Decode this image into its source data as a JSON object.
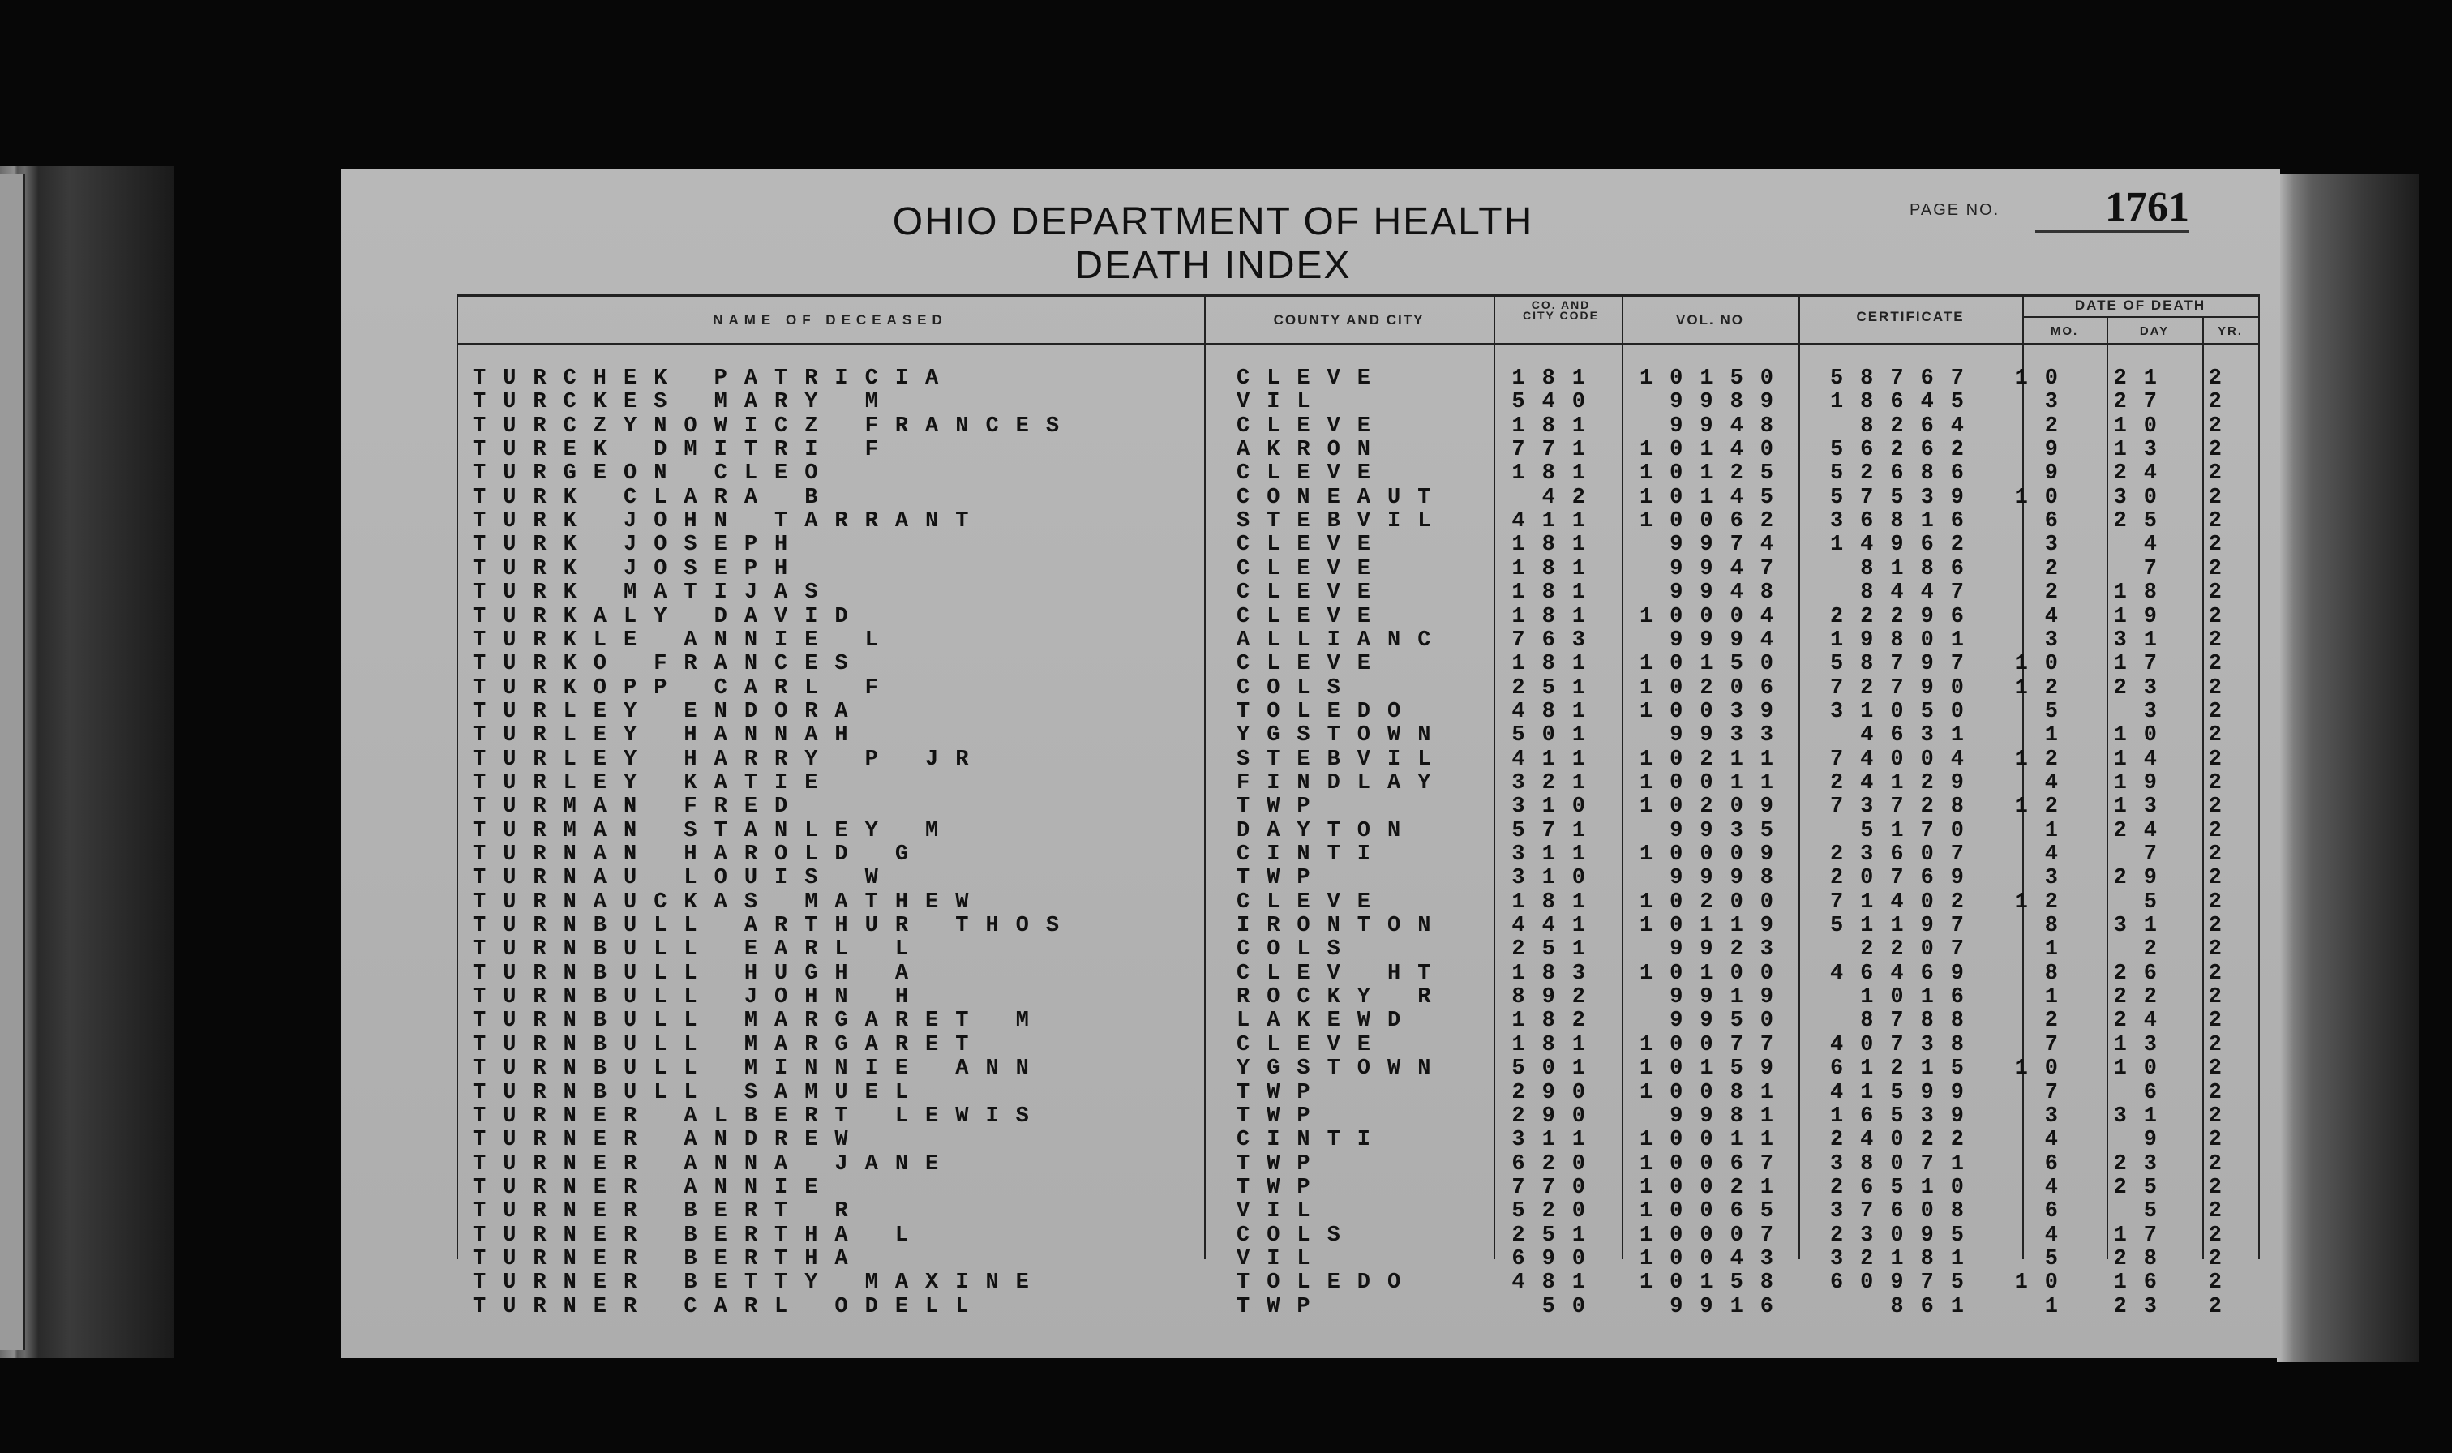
{
  "header": {
    "title_line1": "OHIO DEPARTMENT OF HEALTH",
    "title_line2": "DEATH INDEX",
    "page_no_label": "PAGE NO.",
    "page_no": "1761"
  },
  "columns": {
    "name": "NAME OF DECEASED",
    "county": "COUNTY AND CITY",
    "code": "CO. AND CITY CODE",
    "vol": "VOL. NO",
    "certificate": "CERTIFICATE",
    "date_group": "DATE OF DEATH",
    "mo": "MO.",
    "day": "DAY",
    "yr": "YR."
  },
  "rows": [
    [
      "TURCHEK PATRICIA",
      "CLEVE",
      "181",
      "10150",
      "58767",
      "10",
      "21",
      "2"
    ],
    [
      "TURCKES MARY M",
      "VIL",
      "540",
      "9989",
      "18645",
      "3",
      "27",
      "2"
    ],
    [
      "TURCZYNOWICZ FRANCES",
      "CLEVE",
      "181",
      "9948",
      "8264",
      "2",
      "10",
      "2"
    ],
    [
      "TUREK DMITRI F",
      "AKRON",
      "771",
      "10140",
      "56262",
      "9",
      "13",
      "2"
    ],
    [
      "TURGEON CLEO",
      "CLEVE",
      "181",
      "10125",
      "52686",
      "9",
      "24",
      "2"
    ],
    [
      "TURK CLARA B",
      "CONEAUT",
      "42",
      "10145",
      "57539",
      "10",
      "30",
      "2"
    ],
    [
      "TURK JOHN TARRANT",
      "STEBVIL",
      "411",
      "10062",
      "36816",
      "6",
      "25",
      "2"
    ],
    [
      "TURK JOSEPH",
      "CLEVE",
      "181",
      "9974",
      "14962",
      "3",
      "4",
      "2"
    ],
    [
      "TURK JOSEPH",
      "CLEVE",
      "181",
      "9947",
      "8186",
      "2",
      "7",
      "2"
    ],
    [
      "TURK MATIJAS",
      "CLEVE",
      "181",
      "9948",
      "8447",
      "2",
      "18",
      "2"
    ],
    [
      "TURKALY DAVID",
      "CLEVE",
      "181",
      "10004",
      "22296",
      "4",
      "19",
      "2"
    ],
    [
      "TURKLE ANNIE L",
      "ALLIANC",
      "763",
      "9994",
      "19801",
      "3",
      "31",
      "2"
    ],
    [
      "TURKO FRANCES",
      "CLEVE",
      "181",
      "10150",
      "58797",
      "10",
      "17",
      "2"
    ],
    [
      "TURKOPP CARL F",
      "COLS",
      "251",
      "10206",
      "72790",
      "12",
      "23",
      "2"
    ],
    [
      "TURLEY ENDORA",
      "TOLEDO",
      "481",
      "10039",
      "31050",
      "5",
      "3",
      "2"
    ],
    [
      "TURLEY HANNAH",
      "YGSTOWN",
      "501",
      "9933",
      "4631",
      "1",
      "10",
      "2"
    ],
    [
      "TURLEY HARRY P JR",
      "STEBVIL",
      "411",
      "10211",
      "74004",
      "12",
      "14",
      "2"
    ],
    [
      "TURLEY KATIE",
      "FINDLAY",
      "321",
      "10011",
      "24129",
      "4",
      "19",
      "2"
    ],
    [
      "TURMAN FRED",
      "TWP",
      "310",
      "10209",
      "73728",
      "12",
      "13",
      "2"
    ],
    [
      "TURMAN STANLEY M",
      "DAYTON",
      "571",
      "9935",
      "5170",
      "1",
      "24",
      "2"
    ],
    [
      "TURNAN HAROLD G",
      "CINTI",
      "311",
      "10009",
      "23607",
      "4",
      "7",
      "2"
    ],
    [
      "TURNAU LOUIS W",
      "TWP",
      "310",
      "9998",
      "20769",
      "3",
      "29",
      "2"
    ],
    [
      "TURNAUCKAS MATHEW",
      "CLEVE",
      "181",
      "10200",
      "71402",
      "12",
      "5",
      "2"
    ],
    [
      "TURNBULL ARTHUR THOS",
      "IRONTON",
      "441",
      "10119",
      "51197",
      "8",
      "31",
      "2"
    ],
    [
      "TURNBULL EARL L",
      "COLS",
      "251",
      "9923",
      "2207",
      "1",
      "2",
      "2"
    ],
    [
      "TURNBULL HUGH A",
      "CLEV HT",
      "183",
      "10100",
      "46469",
      "8",
      "26",
      "2"
    ],
    [
      "TURNBULL JOHN H",
      "ROCKY R",
      "892",
      "9919",
      "1016",
      "1",
      "22",
      "2"
    ],
    [
      "TURNBULL MARGARET M",
      "LAKEWD",
      "182",
      "9950",
      "8788",
      "2",
      "24",
      "2"
    ],
    [
      "TURNBULL MARGARET",
      "CLEVE",
      "181",
      "10077",
      "40738",
      "7",
      "13",
      "2"
    ],
    [
      "TURNBULL MINNIE ANN",
      "YGSTOWN",
      "501",
      "10159",
      "61215",
      "10",
      "10",
      "2"
    ],
    [
      "TURNBULL SAMUEL",
      "TWP",
      "290",
      "10081",
      "41599",
      "7",
      "6",
      "2"
    ],
    [
      "TURNER ALBERT LEWIS",
      "TWP",
      "290",
      "9981",
      "16539",
      "3",
      "31",
      "2"
    ],
    [
      "TURNER ANDREW",
      "CINTI",
      "311",
      "10011",
      "24022",
      "4",
      "9",
      "2"
    ],
    [
      "TURNER ANNA JANE",
      "TWP",
      "620",
      "10067",
      "38071",
      "6",
      "23",
      "2"
    ],
    [
      "TURNER ANNIE",
      "TWP",
      "770",
      "10021",
      "26510",
      "4",
      "25",
      "2"
    ],
    [
      "TURNER BERT R",
      "VIL",
      "520",
      "10065",
      "37608",
      "6",
      "5",
      "2"
    ],
    [
      "TURNER BERTHA L",
      "COLS",
      "251",
      "10007",
      "23095",
      "4",
      "17",
      "2"
    ],
    [
      "TURNER BERTHA",
      "VIL",
      "690",
      "10043",
      "32181",
      "5",
      "28",
      "2"
    ],
    [
      "TURNER BETTY MAXINE",
      "TOLEDO",
      "481",
      "10158",
      "60975",
      "10",
      "16",
      "2"
    ],
    [
      "TURNER CARL ODELL",
      "TWP",
      "50",
      "9916",
      "861",
      "1",
      "23",
      "2"
    ]
  ]
}
